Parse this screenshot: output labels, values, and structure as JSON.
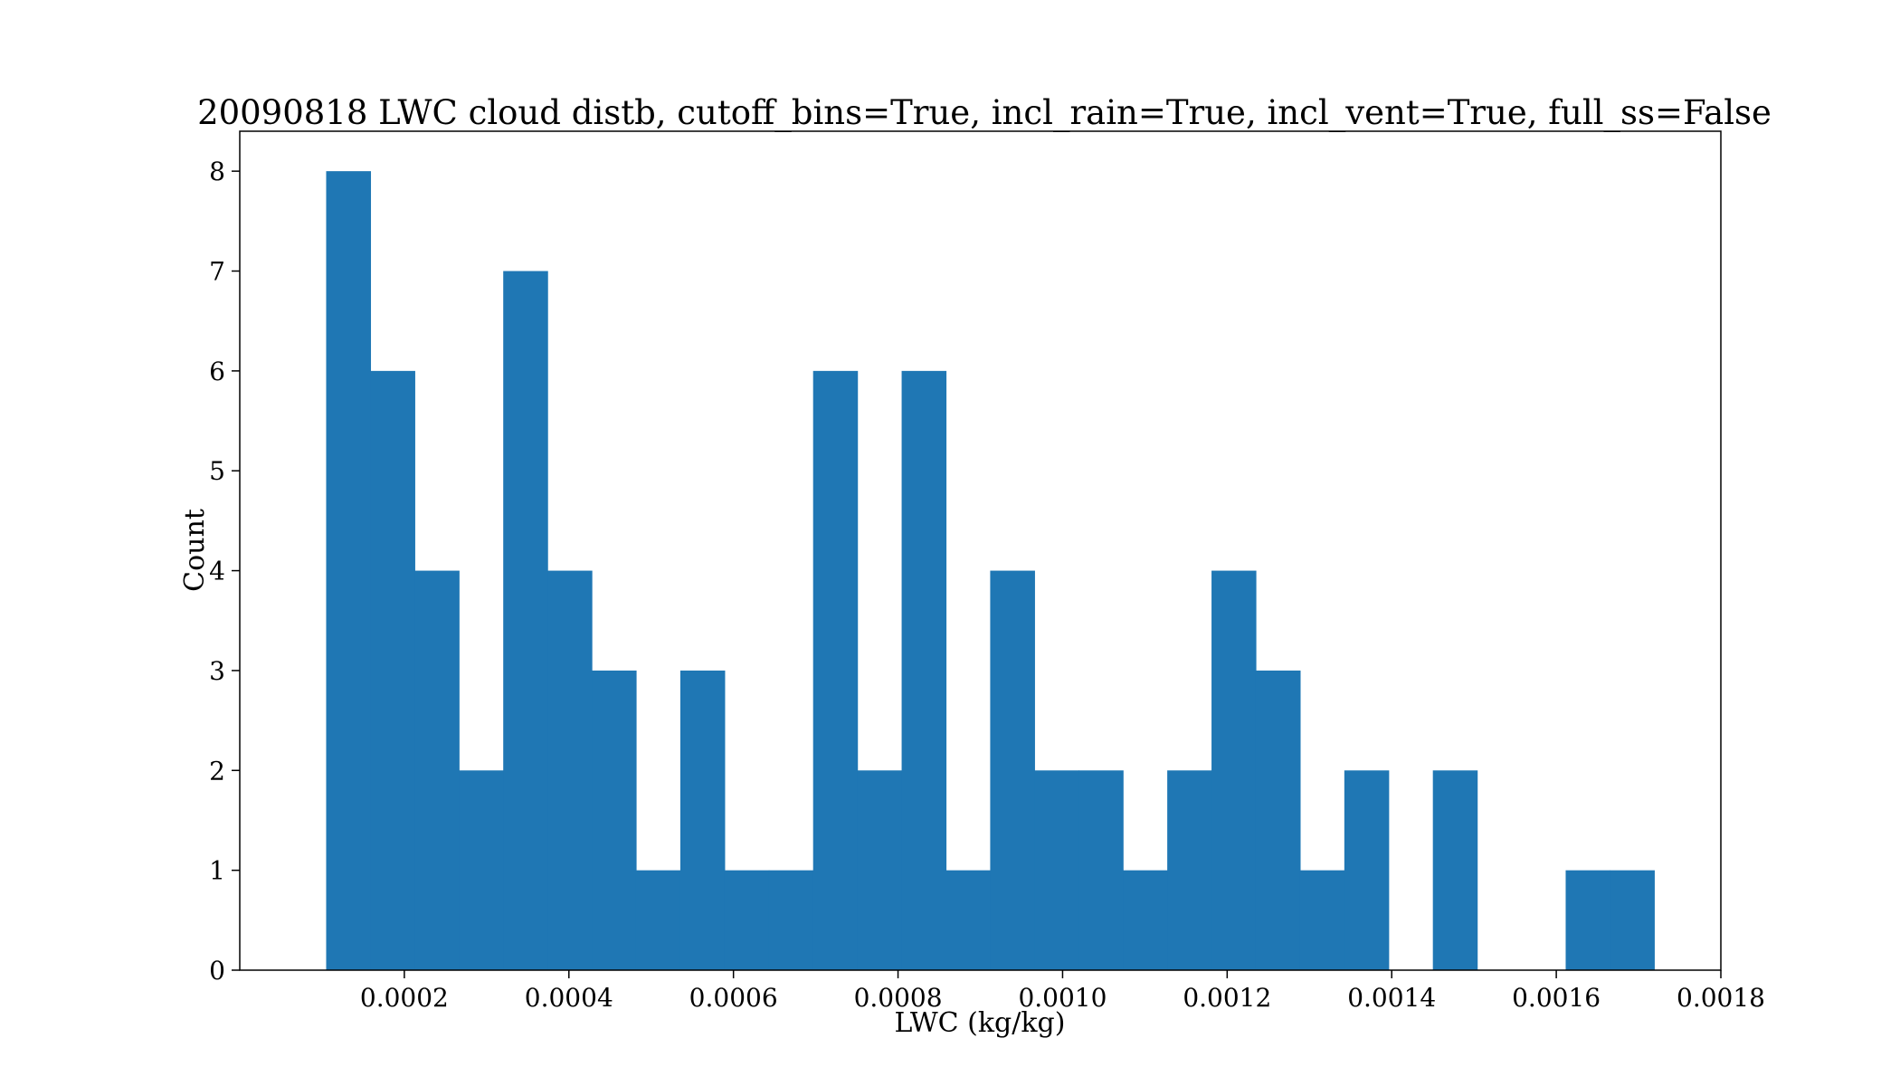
{
  "chart_data": {
    "type": "bar",
    "histogram": true,
    "title": "20090818 LWC cloud distb, cutoff_bins=True, incl_rain=True, incl_vent=True, full_ss=False",
    "xlabel": "LWC (kg/kg)",
    "ylabel": "Count",
    "xlim": [
      0.0,
      0.0018
    ],
    "ylim": [
      0,
      8.4
    ],
    "bin_start": 0.000105,
    "bin_width": 5.38e-05,
    "values": [
      8,
      6,
      4,
      2,
      7,
      4,
      3,
      1,
      3,
      1,
      1,
      6,
      2,
      6,
      1,
      4,
      2,
      2,
      1,
      2,
      4,
      3,
      1,
      2,
      0,
      2,
      0,
      0,
      1,
      1
    ],
    "x_ticks": [
      "0.0002",
      "0.0004",
      "0.0006",
      "0.0008",
      "0.0010",
      "0.0012",
      "0.0014",
      "0.0016",
      "0.0018"
    ],
    "x_tick_values": [
      0.0002,
      0.0004,
      0.0006,
      0.0008,
      0.001,
      0.0012,
      0.0014,
      0.0016,
      0.0018
    ],
    "y_ticks": [
      "0",
      "1",
      "2",
      "3",
      "4",
      "5",
      "6",
      "7",
      "8"
    ],
    "y_tick_values": [
      0,
      1,
      2,
      3,
      4,
      5,
      6,
      7,
      8
    ],
    "grid": false,
    "bar_color": "#1f77b4"
  }
}
